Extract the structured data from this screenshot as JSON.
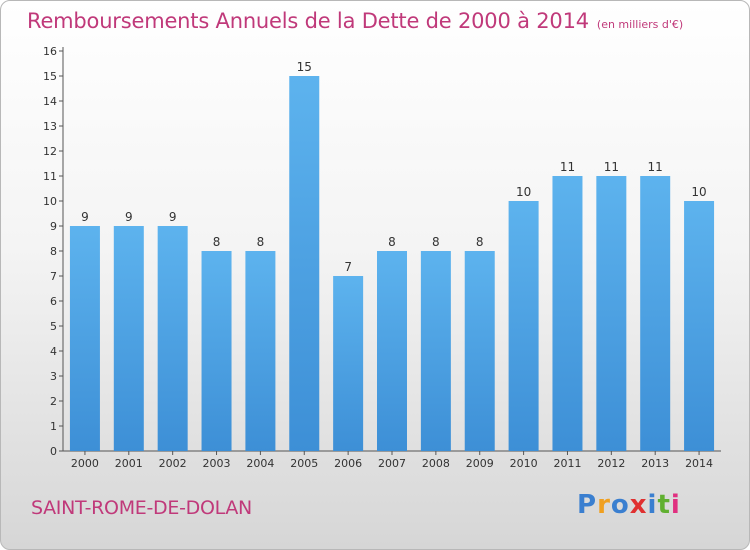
{
  "header": {
    "title": "Remboursements Annuels de la Dette de 2000 à 2014",
    "subtitle": "(en milliers d'€)"
  },
  "footer": {
    "commune": "SAINT-ROME-DE-DOLAN",
    "brand": "Proxiti",
    "brand_colors": [
      "#3a7fd0",
      "#f0a020",
      "#3a7fd0",
      "#e03030",
      "#3a7fd0",
      "#60b030",
      "#e03080"
    ]
  },
  "chart_data": {
    "type": "bar",
    "title": "Remboursements Annuels de la Dette de 2000 à 2014",
    "subtitle": "(en milliers d'€)",
    "categories": [
      "2000",
      "2001",
      "2002",
      "2003",
      "2004",
      "2005",
      "2006",
      "2007",
      "2008",
      "2009",
      "2010",
      "2011",
      "2012",
      "2013",
      "2014"
    ],
    "values": [
      9,
      9,
      9,
      8,
      8,
      15,
      7,
      8,
      8,
      8,
      10,
      11,
      11,
      11,
      10
    ],
    "xlabel": "",
    "ylabel": "",
    "ylim": [
      0,
      16
    ],
    "yticks": [
      0,
      1,
      2,
      3,
      4,
      5,
      6,
      7,
      8,
      9,
      10,
      11,
      12,
      13,
      14,
      15,
      16
    ],
    "grid": false,
    "legend": "none",
    "bar_color": "#3d8fd6",
    "bar_color_light": "#5db3ee",
    "data_labels": true
  }
}
